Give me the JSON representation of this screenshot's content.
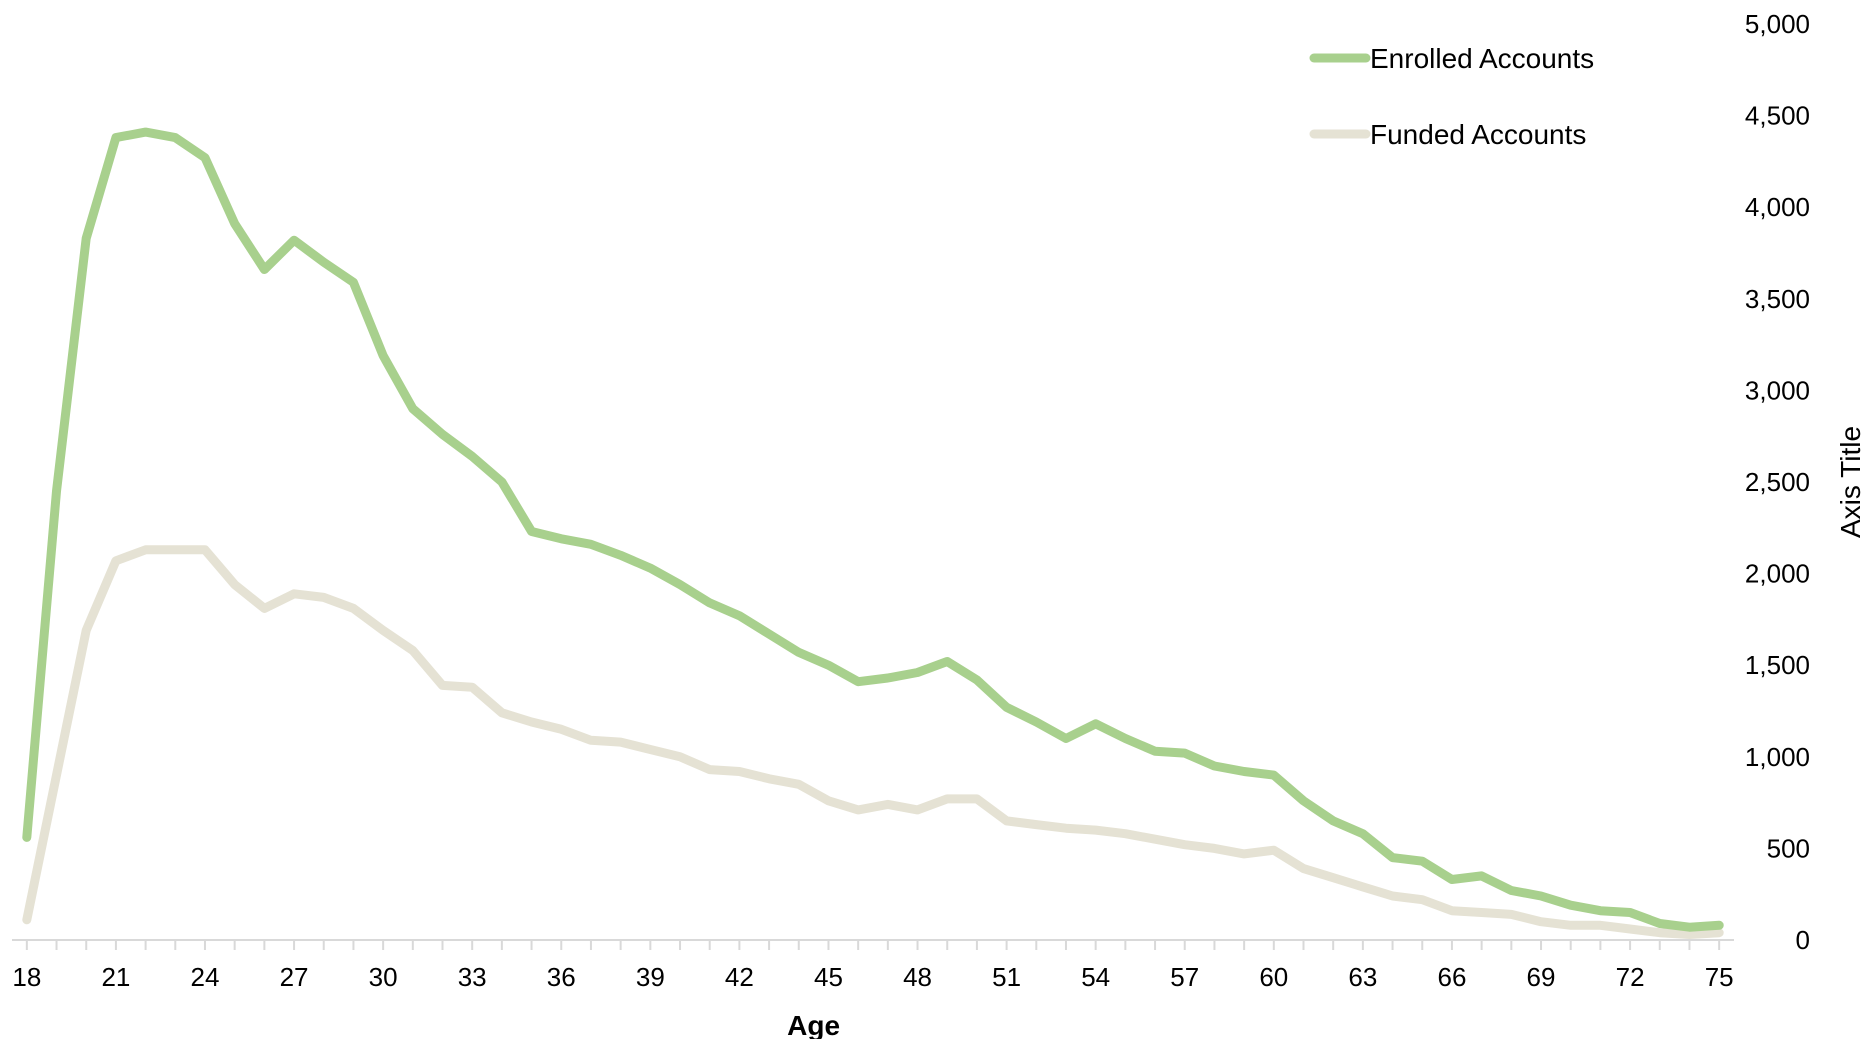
{
  "chart_data": {
    "type": "line",
    "title": "",
    "xlabel": "Age",
    "ylabel": "Axis Title",
    "x": [
      18,
      19,
      20,
      21,
      22,
      23,
      24,
      25,
      26,
      27,
      28,
      29,
      30,
      31,
      32,
      33,
      34,
      35,
      36,
      37,
      38,
      39,
      40,
      41,
      42,
      43,
      44,
      45,
      46,
      47,
      48,
      49,
      50,
      51,
      52,
      53,
      54,
      55,
      56,
      57,
      58,
      59,
      60,
      61,
      62,
      63,
      64,
      65,
      66,
      67,
      68,
      69,
      70,
      71,
      72,
      73,
      74,
      75
    ],
    "x_tick_values": [
      18,
      21,
      24,
      27,
      30,
      33,
      36,
      39,
      42,
      45,
      48,
      51,
      54,
      57,
      60,
      63,
      66,
      69,
      72,
      75
    ],
    "xlim": [
      17.5,
      75.5
    ],
    "ylim": [
      0,
      5000
    ],
    "y_ticks": [
      0,
      500,
      1000,
      1500,
      2000,
      2500,
      3000,
      3500,
      4000,
      4500,
      5000
    ],
    "y_tick_labels": [
      "0",
      "500",
      "1,000",
      "1,500",
      "2,000",
      "2,500",
      "3,000",
      "3,500",
      "4,000",
      "4,500",
      "5,000"
    ],
    "y_axis_side": "right",
    "grid": false,
    "legend_position": "top-right",
    "series": [
      {
        "name": "Enrolled Accounts",
        "color": "#a8d08d",
        "values": [
          560,
          2450,
          3830,
          4380,
          4410,
          4380,
          4270,
          3910,
          3660,
          3820,
          3700,
          3590,
          3190,
          2900,
          2760,
          2640,
          2500,
          2230,
          2190,
          2160,
          2100,
          2030,
          1940,
          1840,
          1770,
          1670,
          1570,
          1500,
          1410,
          1430,
          1460,
          1520,
          1420,
          1270,
          1190,
          1100,
          1180,
          1100,
          1030,
          1020,
          950,
          920,
          900,
          760,
          650,
          580,
          450,
          430,
          330,
          350,
          270,
          240,
          190,
          160,
          150,
          90,
          70,
          80
        ]
      },
      {
        "name": "Funded Accounts",
        "color": "#e5e2d4",
        "values": [
          110,
          900,
          1690,
          2070,
          2130,
          2130,
          2130,
          1940,
          1810,
          1890,
          1870,
          1810,
          1690,
          1580,
          1390,
          1380,
          1240,
          1190,
          1150,
          1090,
          1080,
          1040,
          1000,
          930,
          920,
          880,
          850,
          760,
          710,
          740,
          710,
          770,
          770,
          650,
          630,
          610,
          600,
          580,
          550,
          520,
          500,
          470,
          490,
          390,
          340,
          290,
          240,
          220,
          160,
          150,
          140,
          100,
          80,
          80,
          60,
          40,
          30,
          40
        ]
      }
    ]
  }
}
